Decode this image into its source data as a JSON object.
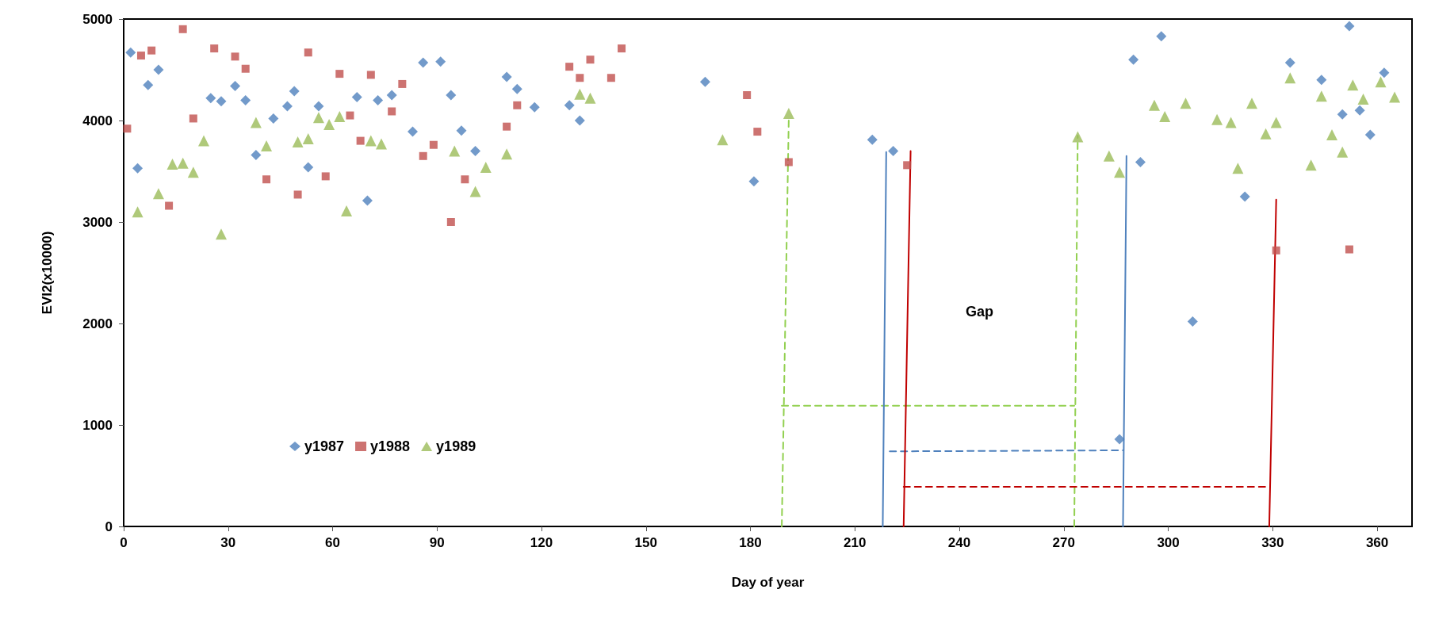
{
  "chart_data": {
    "type": "scatter",
    "xlabel": "Day of year",
    "ylabel": "EVI2(x10000)",
    "xlim": [
      0,
      370
    ],
    "xticks": [
      0,
      30,
      60,
      90,
      120,
      150,
      180,
      210,
      240,
      270,
      300,
      330,
      360
    ],
    "ylim": [
      0,
      5000
    ],
    "yticks": [
      0,
      1000,
      2000,
      3000,
      4000,
      5000
    ],
    "grid": false,
    "legend": "bottom left",
    "annotations": [
      "Gap"
    ],
    "series": [
      {
        "name": "y1987",
        "type": "scatter",
        "marker": "diamond",
        "color": "#4f81bd",
        "x": [
          2,
          4,
          7,
          10,
          25,
          28,
          32,
          35,
          38,
          43,
          47,
          49,
          53,
          56,
          67,
          70,
          73,
          77,
          83,
          86,
          91,
          94,
          97,
          101,
          110,
          113,
          118,
          128,
          131,
          167,
          181,
          215,
          221,
          286,
          290,
          292,
          298,
          307,
          322,
          335,
          344,
          350,
          352,
          355,
          358,
          362
        ],
        "values": [
          4670,
          3530,
          4350,
          4500,
          4220,
          4190,
          4340,
          4200,
          3660,
          4020,
          4140,
          4290,
          3540,
          4140,
          4230,
          3210,
          4200,
          4250,
          3890,
          4570,
          4580,
          4250,
          3900,
          3700,
          4430,
          4310,
          4130,
          4150,
          4000,
          4380,
          3400,
          3810,
          3700,
          860,
          4600,
          3590,
          4830,
          2020,
          3250,
          4570,
          4400,
          4060,
          4930,
          4100,
          3860,
          4470
        ]
      },
      {
        "name": "y1988",
        "type": "scatter",
        "marker": "square",
        "color": "#c0504d",
        "x": [
          1,
          5,
          8,
          13,
          17,
          20,
          26,
          32,
          35,
          41,
          50,
          53,
          58,
          62,
          65,
          68,
          71,
          77,
          80,
          86,
          89,
          94,
          98,
          110,
          113,
          128,
          131,
          134,
          140,
          143,
          179,
          182,
          191,
          225,
          331,
          352
        ],
        "values": [
          3920,
          4640,
          4690,
          3160,
          4900,
          4020,
          4710,
          4630,
          4510,
          3420,
          3270,
          4670,
          3450,
          4460,
          4050,
          3800,
          4450,
          4090,
          4360,
          3650,
          3760,
          3000,
          3420,
          3940,
          4150,
          4530,
          4420,
          4600,
          4420,
          4710,
          4250,
          3890,
          3590,
          3560,
          2720,
          2730
        ]
      },
      {
        "name": "y1989",
        "type": "scatter",
        "marker": "triangle",
        "color": "#9bbb59",
        "x": [
          4,
          10,
          14,
          17,
          20,
          23,
          28,
          38,
          41,
          50,
          53,
          56,
          59,
          62,
          64,
          71,
          74,
          95,
          101,
          104,
          110,
          131,
          134,
          172,
          191,
          274,
          283,
          286,
          296,
          299,
          305,
          314,
          318,
          320,
          324,
          328,
          331,
          335,
          341,
          344,
          347,
          350,
          353,
          356,
          361,
          365
        ],
        "values": [
          3100,
          3280,
          3570,
          3580,
          3490,
          3800,
          2880,
          3980,
          3750,
          3790,
          3820,
          4030,
          3960,
          4040,
          3110,
          3800,
          3770,
          3700,
          3300,
          3540,
          3670,
          4260,
          4220,
          3810,
          4070,
          3840,
          3650,
          3490,
          4150,
          4040,
          4170,
          4010,
          3980,
          3530,
          4170,
          3870,
          3980,
          4420,
          3560,
          4240,
          3860,
          3690,
          4350,
          4210,
          4380,
          4230
        ]
      },
      {
        "type": "line",
        "marker": "none",
        "line_style": "dashed",
        "color": "#92d050",
        "x": [
          189,
          191
        ],
        "values": [
          0,
          4000
        ]
      },
      {
        "type": "line",
        "marker": "none",
        "line_style": "dashed",
        "color": "#92d050",
        "x": [
          189,
          273
        ],
        "values": [
          1190,
          1190
        ]
      },
      {
        "type": "line",
        "marker": "none",
        "line_style": "dashed",
        "color": "#92d050",
        "x": [
          273,
          274
        ],
        "values": [
          0,
          3850
        ]
      },
      {
        "type": "line",
        "marker": "none",
        "line_style": "solid",
        "color": "#4f81bd",
        "x": [
          218,
          219
        ],
        "values": [
          0,
          3690
        ]
      },
      {
        "type": "line",
        "marker": "none",
        "line_style": "dashed",
        "color": "#4f81bd",
        "x": [
          220,
          287
        ],
        "values": [
          740,
          750
        ]
      },
      {
        "type": "line",
        "marker": "none",
        "line_style": "solid",
        "color": "#4f81bd",
        "x": [
          287,
          288
        ],
        "values": [
          0,
          3650
        ]
      },
      {
        "type": "line",
        "marker": "none",
        "line_style": "solid",
        "color": "#c00000",
        "x": [
          224,
          226
        ],
        "values": [
          0,
          3700
        ]
      },
      {
        "type": "line",
        "marker": "none",
        "line_style": "dashed",
        "color": "#c00000",
        "x": [
          224,
          328
        ],
        "values": [
          390,
          390
        ]
      },
      {
        "type": "line",
        "marker": "none",
        "line_style": "solid",
        "color": "#c00000",
        "x": [
          329,
          331
        ],
        "values": [
          0,
          3220
        ]
      }
    ]
  }
}
